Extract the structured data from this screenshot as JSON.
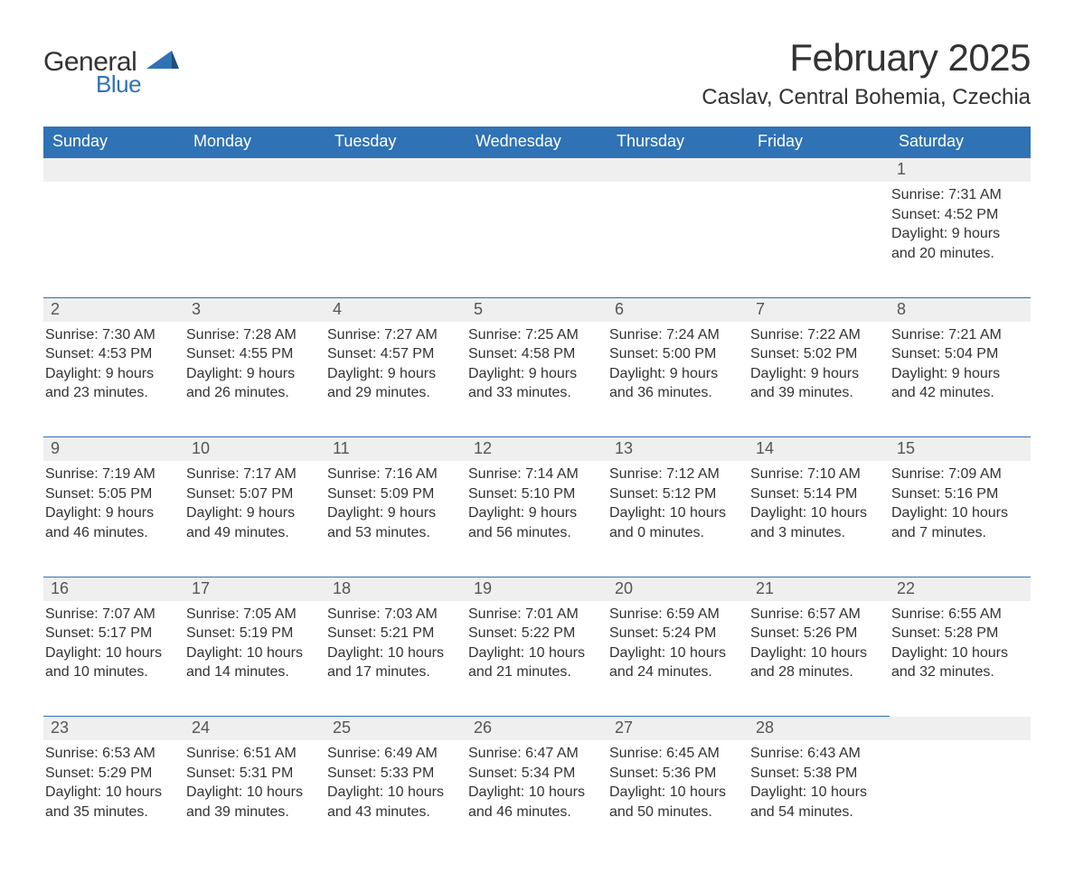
{
  "logo": {
    "word1": "General",
    "word2": "Blue"
  },
  "title": "February 2025",
  "location": "Caslav, Central Bohemia, Czechia",
  "colors": {
    "header_bg": "#2f72b5",
    "header_text": "#ffffff",
    "daynum_bg": "#efefef",
    "rule": "#2f72b5",
    "page_bg": "#ffffff",
    "text": "#333333",
    "logo_blue": "#2f72b5"
  },
  "weekdays": [
    "Sunday",
    "Monday",
    "Tuesday",
    "Wednesday",
    "Thursday",
    "Friday",
    "Saturday"
  ],
  "weeks": [
    [
      null,
      null,
      null,
      null,
      null,
      null,
      {
        "n": "1",
        "sr": "Sunrise: 7:31 AM",
        "ss": "Sunset: 4:52 PM",
        "dl": "Daylight: 9 hours and 20 minutes."
      }
    ],
    [
      {
        "n": "2",
        "sr": "Sunrise: 7:30 AM",
        "ss": "Sunset: 4:53 PM",
        "dl": "Daylight: 9 hours and 23 minutes."
      },
      {
        "n": "3",
        "sr": "Sunrise: 7:28 AM",
        "ss": "Sunset: 4:55 PM",
        "dl": "Daylight: 9 hours and 26 minutes."
      },
      {
        "n": "4",
        "sr": "Sunrise: 7:27 AM",
        "ss": "Sunset: 4:57 PM",
        "dl": "Daylight: 9 hours and 29 minutes."
      },
      {
        "n": "5",
        "sr": "Sunrise: 7:25 AM",
        "ss": "Sunset: 4:58 PM",
        "dl": "Daylight: 9 hours and 33 minutes."
      },
      {
        "n": "6",
        "sr": "Sunrise: 7:24 AM",
        "ss": "Sunset: 5:00 PM",
        "dl": "Daylight: 9 hours and 36 minutes."
      },
      {
        "n": "7",
        "sr": "Sunrise: 7:22 AM",
        "ss": "Sunset: 5:02 PM",
        "dl": "Daylight: 9 hours and 39 minutes."
      },
      {
        "n": "8",
        "sr": "Sunrise: 7:21 AM",
        "ss": "Sunset: 5:04 PM",
        "dl": "Daylight: 9 hours and 42 minutes."
      }
    ],
    [
      {
        "n": "9",
        "sr": "Sunrise: 7:19 AM",
        "ss": "Sunset: 5:05 PM",
        "dl": "Daylight: 9 hours and 46 minutes."
      },
      {
        "n": "10",
        "sr": "Sunrise: 7:17 AM",
        "ss": "Sunset: 5:07 PM",
        "dl": "Daylight: 9 hours and 49 minutes."
      },
      {
        "n": "11",
        "sr": "Sunrise: 7:16 AM",
        "ss": "Sunset: 5:09 PM",
        "dl": "Daylight: 9 hours and 53 minutes."
      },
      {
        "n": "12",
        "sr": "Sunrise: 7:14 AM",
        "ss": "Sunset: 5:10 PM",
        "dl": "Daylight: 9 hours and 56 minutes."
      },
      {
        "n": "13",
        "sr": "Sunrise: 7:12 AM",
        "ss": "Sunset: 5:12 PM",
        "dl": "Daylight: 10 hours and 0 minutes."
      },
      {
        "n": "14",
        "sr": "Sunrise: 7:10 AM",
        "ss": "Sunset: 5:14 PM",
        "dl": "Daylight: 10 hours and 3 minutes."
      },
      {
        "n": "15",
        "sr": "Sunrise: 7:09 AM",
        "ss": "Sunset: 5:16 PM",
        "dl": "Daylight: 10 hours and 7 minutes."
      }
    ],
    [
      {
        "n": "16",
        "sr": "Sunrise: 7:07 AM",
        "ss": "Sunset: 5:17 PM",
        "dl": "Daylight: 10 hours and 10 minutes."
      },
      {
        "n": "17",
        "sr": "Sunrise: 7:05 AM",
        "ss": "Sunset: 5:19 PM",
        "dl": "Daylight: 10 hours and 14 minutes."
      },
      {
        "n": "18",
        "sr": "Sunrise: 7:03 AM",
        "ss": "Sunset: 5:21 PM",
        "dl": "Daylight: 10 hours and 17 minutes."
      },
      {
        "n": "19",
        "sr": "Sunrise: 7:01 AM",
        "ss": "Sunset: 5:22 PM",
        "dl": "Daylight: 10 hours and 21 minutes."
      },
      {
        "n": "20",
        "sr": "Sunrise: 6:59 AM",
        "ss": "Sunset: 5:24 PM",
        "dl": "Daylight: 10 hours and 24 minutes."
      },
      {
        "n": "21",
        "sr": "Sunrise: 6:57 AM",
        "ss": "Sunset: 5:26 PM",
        "dl": "Daylight: 10 hours and 28 minutes."
      },
      {
        "n": "22",
        "sr": "Sunrise: 6:55 AM",
        "ss": "Sunset: 5:28 PM",
        "dl": "Daylight: 10 hours and 32 minutes."
      }
    ],
    [
      {
        "n": "23",
        "sr": "Sunrise: 6:53 AM",
        "ss": "Sunset: 5:29 PM",
        "dl": "Daylight: 10 hours and 35 minutes."
      },
      {
        "n": "24",
        "sr": "Sunrise: 6:51 AM",
        "ss": "Sunset: 5:31 PM",
        "dl": "Daylight: 10 hours and 39 minutes."
      },
      {
        "n": "25",
        "sr": "Sunrise: 6:49 AM",
        "ss": "Sunset: 5:33 PM",
        "dl": "Daylight: 10 hours and 43 minutes."
      },
      {
        "n": "26",
        "sr": "Sunrise: 6:47 AM",
        "ss": "Sunset: 5:34 PM",
        "dl": "Daylight: 10 hours and 46 minutes."
      },
      {
        "n": "27",
        "sr": "Sunrise: 6:45 AM",
        "ss": "Sunset: 5:36 PM",
        "dl": "Daylight: 10 hours and 50 minutes."
      },
      {
        "n": "28",
        "sr": "Sunrise: 6:43 AM",
        "ss": "Sunset: 5:38 PM",
        "dl": "Daylight: 10 hours and 54 minutes."
      },
      null
    ]
  ]
}
